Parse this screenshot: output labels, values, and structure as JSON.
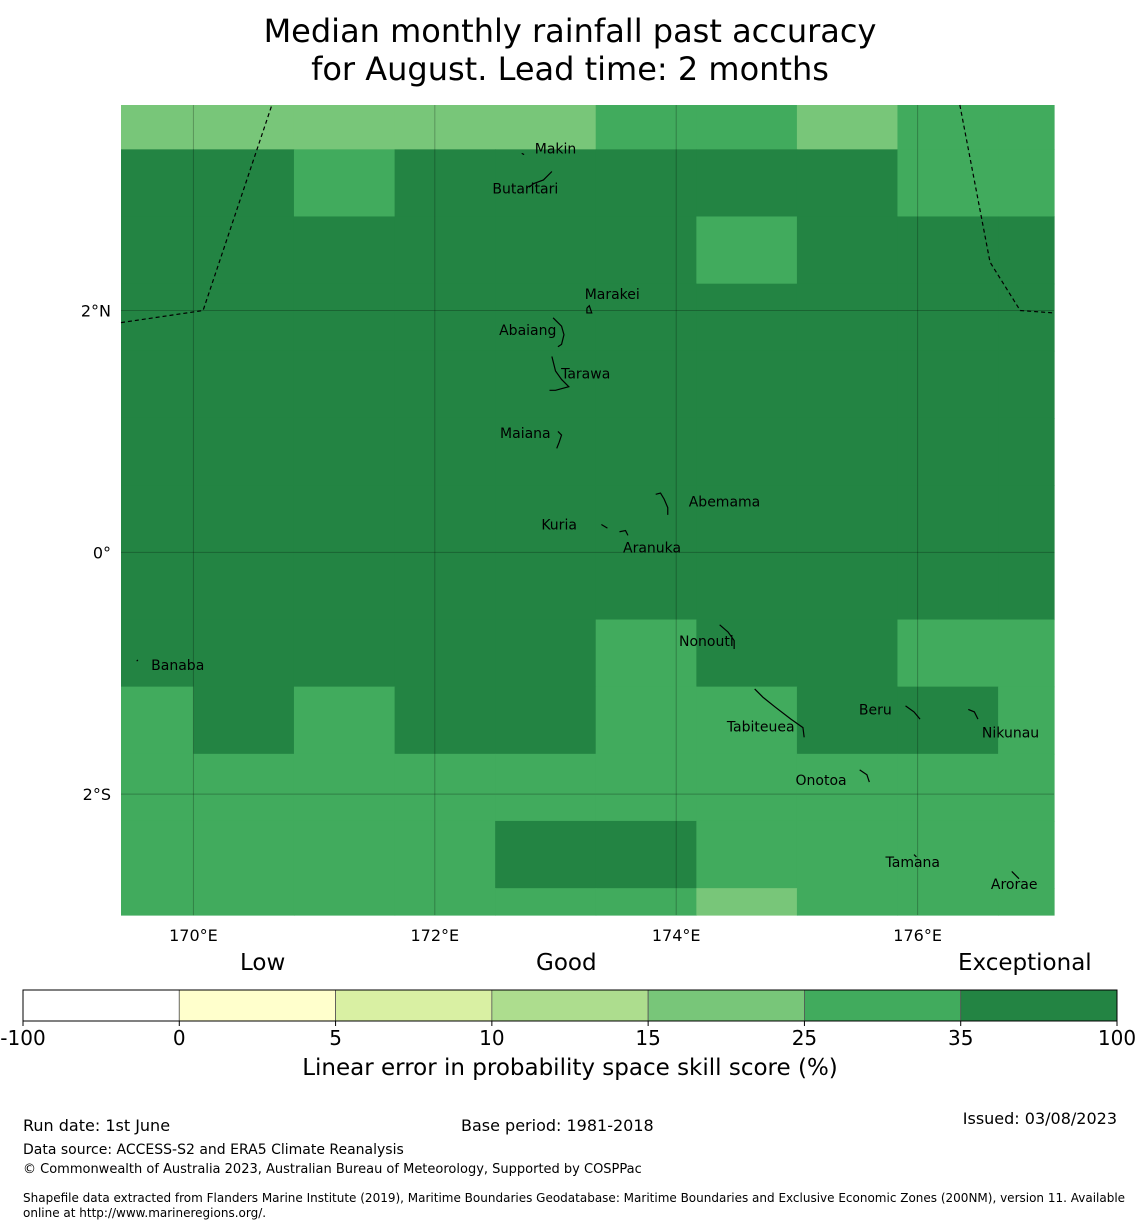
{
  "title": {
    "line1": "Median monthly rainfall past accuracy",
    "line2": "for August. Lead time: 2 months"
  },
  "map": {
    "lon_range": [
      169.4,
      177.13
    ],
    "lat_range": [
      -3.0,
      3.7
    ],
    "lon_ticks": [
      {
        "value": 170,
        "label": "170°E"
      },
      {
        "value": 172,
        "label": "172°E"
      },
      {
        "value": 174,
        "label": "174°E"
      },
      {
        "value": 176,
        "label": "176°E"
      }
    ],
    "lat_ticks": [
      {
        "value": 2,
        "label": "2°N"
      },
      {
        "value": 0,
        "label": "0°"
      },
      {
        "value": -2,
        "label": "2°S"
      }
    ],
    "grid_cols": [
      [
        169.4,
        170.0
      ],
      [
        170.0,
        170.833
      ],
      [
        170.833,
        171.667
      ],
      [
        171.667,
        172.5
      ],
      [
        172.5,
        173.333
      ],
      [
        173.333,
        174.167
      ],
      [
        174.167,
        175.0
      ],
      [
        175.0,
        175.833
      ],
      [
        175.833,
        176.667
      ],
      [
        176.667,
        177.13
      ]
    ],
    "grid_rows": [
      [
        3.333,
        3.7
      ],
      [
        2.778,
        3.333
      ],
      [
        2.222,
        2.778
      ],
      [
        1.667,
        2.222
      ],
      [
        1.111,
        1.667
      ],
      [
        0.556,
        1.111
      ],
      [
        0.0,
        0.556
      ],
      [
        -0.556,
        0.0
      ],
      [
        -1.111,
        -0.556
      ],
      [
        -1.667,
        -1.111
      ],
      [
        -2.222,
        -1.667
      ],
      [
        -2.778,
        -2.222
      ],
      [
        -3.0,
        -2.778
      ]
    ],
    "skill_grid": [
      [
        4,
        4,
        4,
        4,
        4,
        5,
        5,
        4,
        5,
        5
      ],
      [
        6,
        6,
        5,
        6,
        6,
        6,
        6,
        6,
        5,
        5
      ],
      [
        6,
        6,
        6,
        6,
        6,
        6,
        5,
        6,
        6,
        6
      ],
      [
        6,
        6,
        6,
        6,
        6,
        6,
        6,
        6,
        6,
        6
      ],
      [
        6,
        6,
        6,
        6,
        6,
        6,
        6,
        6,
        6,
        6
      ],
      [
        6,
        6,
        6,
        6,
        6,
        6,
        6,
        6,
        6,
        6
      ],
      [
        6,
        6,
        6,
        6,
        6,
        6,
        6,
        6,
        6,
        6
      ],
      [
        6,
        6,
        6,
        6,
        6,
        6,
        6,
        6,
        6,
        6
      ],
      [
        6,
        6,
        6,
        6,
        6,
        5,
        6,
        6,
        5,
        5
      ],
      [
        5,
        6,
        5,
        6,
        6,
        5,
        5,
        6,
        6,
        5
      ],
      [
        5,
        5,
        5,
        5,
        5,
        5,
        5,
        5,
        5,
        5
      ],
      [
        5,
        5,
        5,
        5,
        6,
        6,
        5,
        5,
        5,
        5
      ],
      [
        5,
        5,
        5,
        5,
        5,
        5,
        4,
        5,
        5,
        5
      ]
    ],
    "eez_boundaries": [
      [
        [
          169.4,
          1.9
        ],
        [
          170.08,
          2.0
        ],
        [
          170.65,
          3.7
        ]
      ],
      [
        [
          176.35,
          3.7
        ],
        [
          176.6,
          2.4
        ],
        [
          176.85,
          2.0
        ],
        [
          177.13,
          1.98
        ]
      ]
    ],
    "islands": [
      {
        "name": "Makin",
        "label_lon": 173.0,
        "label_lat": 3.33,
        "pts": [
          [
            172.72,
            3.3
          ],
          [
            172.74,
            3.29
          ]
        ]
      },
      {
        "name": "Butaritari",
        "label_lon": 172.75,
        "label_lat": 3.0,
        "pts": [
          [
            172.78,
            3.02
          ],
          [
            172.82,
            3.05
          ],
          [
            172.9,
            3.08
          ],
          [
            172.97,
            3.15
          ]
        ]
      },
      {
        "name": "Marakei",
        "label_lon": 173.47,
        "label_lat": 2.13,
        "pts": [
          [
            173.26,
            2.02
          ],
          [
            173.28,
            2.04
          ],
          [
            173.3,
            1.98
          ],
          [
            173.26,
            1.98
          ],
          [
            173.26,
            2.02
          ]
        ]
      },
      {
        "name": "Abaiang",
        "label_lon": 172.77,
        "label_lat": 1.83,
        "pts": [
          [
            172.98,
            1.94
          ],
          [
            173.05,
            1.87
          ],
          [
            173.07,
            1.8
          ],
          [
            173.05,
            1.72
          ],
          [
            173.02,
            1.7
          ]
        ]
      },
      {
        "name": "Tarawa",
        "label_lon": 173.25,
        "label_lat": 1.47,
        "pts": [
          [
            172.97,
            1.62
          ],
          [
            173.0,
            1.5
          ],
          [
            173.05,
            1.43
          ],
          [
            173.11,
            1.37
          ],
          [
            173.0,
            1.34
          ],
          [
            172.95,
            1.34
          ]
        ]
      },
      {
        "name": "Maiana",
        "label_lon": 172.75,
        "label_lat": 0.98,
        "pts": [
          [
            173.02,
            1.0
          ],
          [
            173.05,
            0.97
          ],
          [
            173.03,
            0.91
          ],
          [
            173.01,
            0.86
          ]
        ]
      },
      {
        "name": "Abemama",
        "label_lon": 174.4,
        "label_lat": 0.41,
        "pts": [
          [
            173.83,
            0.48
          ],
          [
            173.87,
            0.49
          ],
          [
            173.9,
            0.44
          ],
          [
            173.93,
            0.37
          ],
          [
            173.93,
            0.31
          ]
        ]
      },
      {
        "name": "Kuria",
        "label_lon": 173.03,
        "label_lat": 0.22,
        "pts": [
          [
            173.38,
            0.23
          ],
          [
            173.43,
            0.2
          ]
        ]
      },
      {
        "name": "Aranuka",
        "label_lon": 173.8,
        "label_lat": 0.03,
        "pts": [
          [
            173.53,
            0.17
          ],
          [
            173.58,
            0.18
          ],
          [
            173.6,
            0.14
          ]
        ]
      },
      {
        "name": "Nonouti",
        "label_lon": 174.25,
        "label_lat": -0.74,
        "pts": [
          [
            174.36,
            -0.6
          ],
          [
            174.43,
            -0.66
          ],
          [
            174.48,
            -0.73
          ],
          [
            174.48,
            -0.8
          ]
        ]
      },
      {
        "name": "Banaba",
        "label_lon": 169.87,
        "label_lat": -0.94,
        "pts": [
          [
            169.53,
            -0.9
          ],
          [
            169.54,
            -0.89
          ]
        ]
      },
      {
        "name": "Tabiteuea",
        "label_lon": 174.7,
        "label_lat": -1.45,
        "pts": [
          [
            174.65,
            -1.13
          ],
          [
            174.72,
            -1.2
          ],
          [
            174.82,
            -1.28
          ],
          [
            174.95,
            -1.38
          ],
          [
            175.05,
            -1.45
          ],
          [
            175.06,
            -1.53
          ]
        ]
      },
      {
        "name": "Beru",
        "label_lon": 175.65,
        "label_lat": -1.31,
        "pts": [
          [
            175.9,
            -1.27
          ],
          [
            175.97,
            -1.32
          ],
          [
            176.02,
            -1.38
          ]
        ]
      },
      {
        "name": "Nikunau",
        "label_lon": 176.77,
        "label_lat": -1.5,
        "pts": [
          [
            176.42,
            -1.3
          ],
          [
            176.47,
            -1.32
          ],
          [
            176.5,
            -1.38
          ]
        ]
      },
      {
        "name": "Onotoa",
        "label_lon": 175.2,
        "label_lat": -1.89,
        "pts": [
          [
            175.52,
            -1.8
          ],
          [
            175.58,
            -1.84
          ],
          [
            175.6,
            -1.9
          ]
        ]
      },
      {
        "name": "Tamana",
        "label_lon": 175.96,
        "label_lat": -2.57,
        "pts": [
          [
            175.97,
            -2.5
          ],
          [
            175.99,
            -2.52
          ]
        ]
      },
      {
        "name": "Arorae",
        "label_lon": 176.8,
        "label_lat": -2.75,
        "pts": [
          [
            176.78,
            -2.64
          ],
          [
            176.81,
            -2.67
          ],
          [
            176.84,
            -2.7
          ]
        ]
      }
    ]
  },
  "colorbar": {
    "colors": [
      "#ffffff",
      "#ffffcc",
      "#d9f0a3",
      "#addd8e",
      "#78c679",
      "#41ab5d",
      "#238443"
    ],
    "tick_labels": [
      "-100",
      "0",
      "5",
      "10",
      "15",
      "25",
      "35",
      "100"
    ],
    "category_low": "Low",
    "category_good": "Good",
    "category_exceptional": "Exceptional",
    "axis_label": "Linear error in probability space skill score (%)"
  },
  "footer": {
    "run_date": "Run date: 1st June",
    "base_period": "Base period: 1981-2018",
    "issued": "Issued: 03/08/2023",
    "data_source": "Data source: ACCESS-S2 and ERA5 Climate Reanalysis",
    "copyright": "© Commonwealth of Australia 2023, Australian Bureau of Meteorology, Supported by COSPPac",
    "shapefile_line1": "Shapefile data extracted from Flanders Marine Institute (2019), Maritime Boundaries Geodatabase: Maritime Boundaries and Exclusive Economic Zones (200NM), version 11. Available",
    "shapefile_line2": "online at http://www.marineregions.org/."
  }
}
